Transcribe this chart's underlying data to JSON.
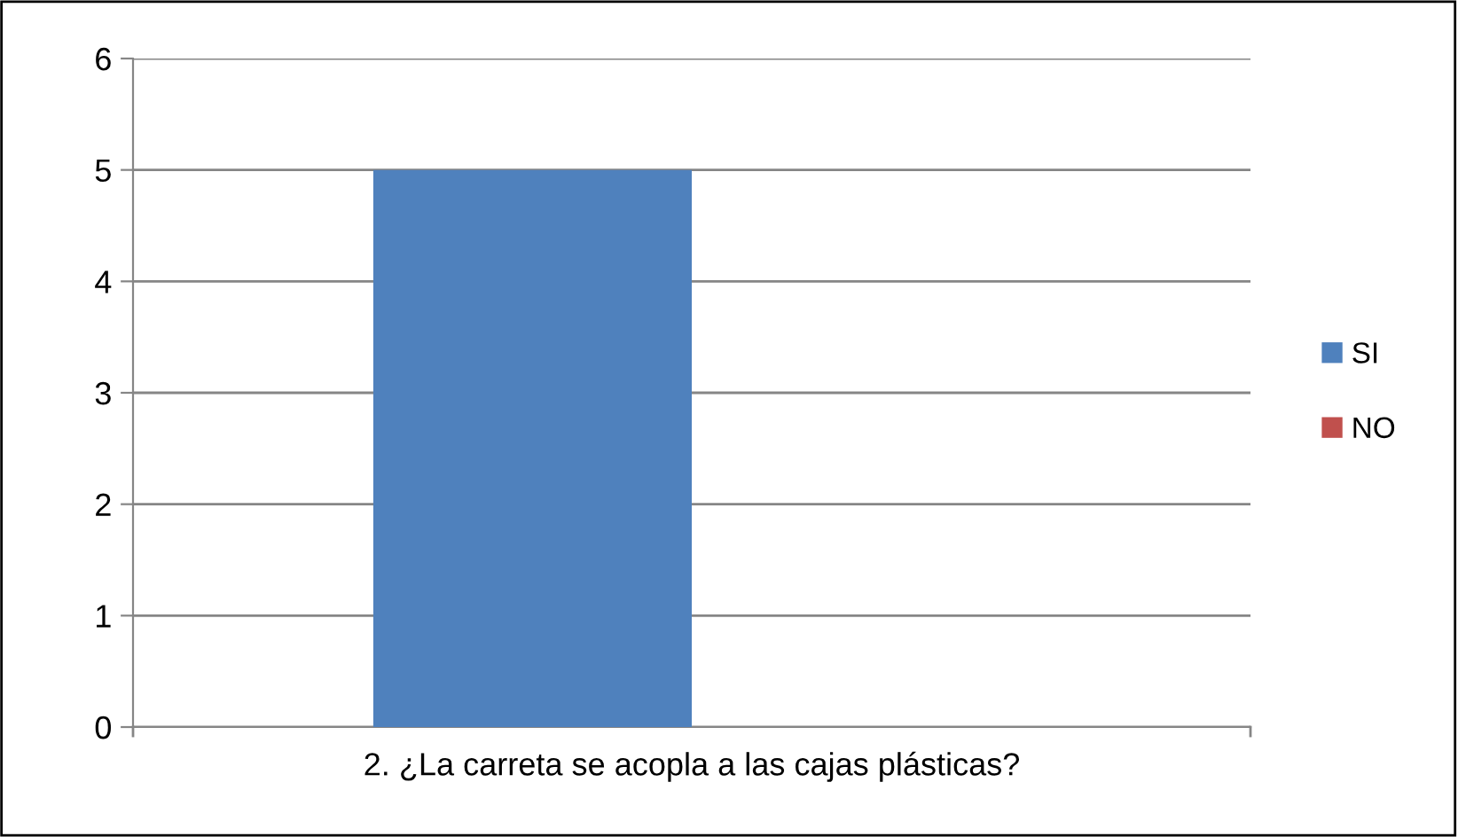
{
  "chart_data": {
    "type": "bar",
    "categories": [
      "2. ¿La carreta se acopla a las cajas plásticas?"
    ],
    "series": [
      {
        "name": "SI",
        "color": "#4f81bd",
        "values": [
          5
        ]
      },
      {
        "name": "NO",
        "color": "#c0504d",
        "values": [
          0
        ]
      }
    ],
    "ylim": [
      0,
      6
    ],
    "yticks": [
      0,
      1,
      2,
      3,
      4,
      5,
      6
    ],
    "grid": "y",
    "legend": "right"
  }
}
